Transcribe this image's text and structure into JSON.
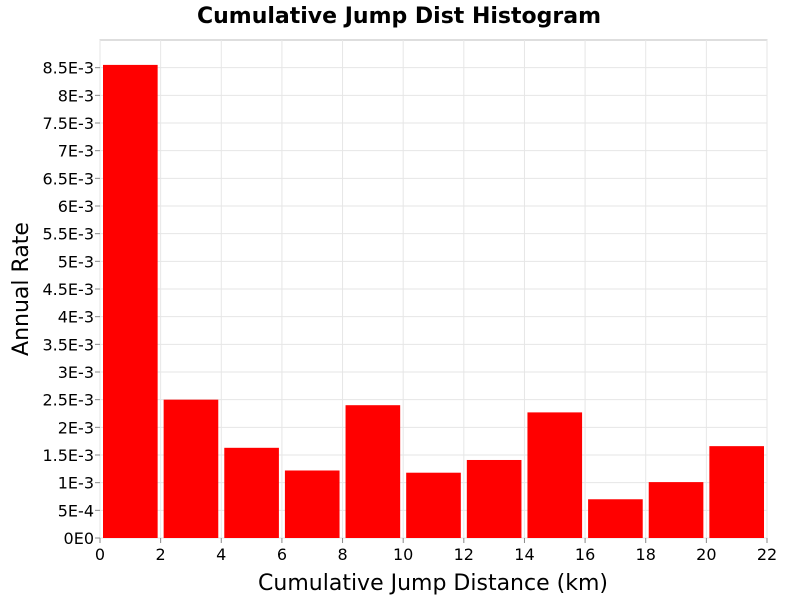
{
  "chart_data": {
    "type": "bar",
    "title": "Cumulative Jump Dist Histogram",
    "xlabel": "Cumulative Jump Distance (km)",
    "ylabel": "Annual Rate",
    "xlim": [
      0,
      22
    ],
    "ylim": [
      0,
      0.009
    ],
    "grid": true,
    "legend": "none",
    "bar_color": "#ff0000",
    "bin_width": 2,
    "bins": [
      {
        "start": 0,
        "end": 2,
        "value": 0.00855
      },
      {
        "start": 2,
        "end": 4,
        "value": 0.0025
      },
      {
        "start": 4,
        "end": 6,
        "value": 0.00163
      },
      {
        "start": 6,
        "end": 8,
        "value": 0.00122
      },
      {
        "start": 8,
        "end": 10,
        "value": 0.0024
      },
      {
        "start": 10,
        "end": 12,
        "value": 0.00118
      },
      {
        "start": 12,
        "end": 14,
        "value": 0.00141
      },
      {
        "start": 14,
        "end": 16,
        "value": 0.00227
      },
      {
        "start": 16,
        "end": 18,
        "value": 0.0007
      },
      {
        "start": 18,
        "end": 20,
        "value": 0.00101
      },
      {
        "start": 20,
        "end": 22,
        "value": 0.00166
      }
    ],
    "x_ticks": [
      {
        "value": 0,
        "label": "0"
      },
      {
        "value": 2,
        "label": "2"
      },
      {
        "value": 4,
        "label": "4"
      },
      {
        "value": 6,
        "label": "6"
      },
      {
        "value": 8,
        "label": "8"
      },
      {
        "value": 10,
        "label": "10"
      },
      {
        "value": 12,
        "label": "12"
      },
      {
        "value": 14,
        "label": "14"
      },
      {
        "value": 16,
        "label": "16"
      },
      {
        "value": 18,
        "label": "18"
      },
      {
        "value": 20,
        "label": "20"
      },
      {
        "value": 22,
        "label": "22"
      }
    ],
    "y_ticks": [
      {
        "value": 0,
        "label": "0E0"
      },
      {
        "value": 0.0005,
        "label": "5E-4"
      },
      {
        "value": 0.001,
        "label": "1E-3"
      },
      {
        "value": 0.0015,
        "label": "1.5E-3"
      },
      {
        "value": 0.002,
        "label": "2E-3"
      },
      {
        "value": 0.0025,
        "label": "2.5E-3"
      },
      {
        "value": 0.003,
        "label": "3E-3"
      },
      {
        "value": 0.0035,
        "label": "3.5E-3"
      },
      {
        "value": 0.004,
        "label": "4E-3"
      },
      {
        "value": 0.0045,
        "label": "4.5E-3"
      },
      {
        "value": 0.005,
        "label": "5E-3"
      },
      {
        "value": 0.0055,
        "label": "5.5E-3"
      },
      {
        "value": 0.006,
        "label": "6E-3"
      },
      {
        "value": 0.0065,
        "label": "6.5E-3"
      },
      {
        "value": 0.007,
        "label": "7E-3"
      },
      {
        "value": 0.0075,
        "label": "7.5E-3"
      },
      {
        "value": 0.008,
        "label": "8E-3"
      },
      {
        "value": 0.0085,
        "label": "8.5E-3"
      }
    ]
  }
}
